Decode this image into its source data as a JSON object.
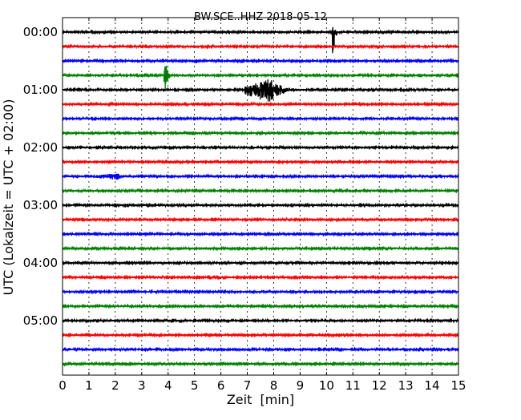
{
  "chart_data": {
    "type": "line",
    "title": "BW.SCE..HHZ 2018-05-12",
    "xlabel": "Zeit  [min]",
    "ylabel": "UTC (Lokalzeit = UTC + 02:00)",
    "xlim": [
      0,
      15
    ],
    "x_ticks": [
      "0",
      "1",
      "2",
      "3",
      "4",
      "5",
      "6",
      "7",
      "8",
      "9",
      "10",
      "11",
      "12",
      "13",
      "14",
      "15"
    ],
    "y_ticks": [
      {
        "label": "00:00",
        "trace": 0
      },
      {
        "label": "01:00",
        "trace": 4
      },
      {
        "label": "02:00",
        "trace": 8
      },
      {
        "label": "03:00",
        "trace": 12
      },
      {
        "label": "04:00",
        "trace": 16
      },
      {
        "label": "05:00",
        "trace": 20
      }
    ],
    "grid": "vertical dotted at each minute",
    "trace_count": 24,
    "minutes_per_trace": 15,
    "trace_colors": [
      "#000000",
      "#ff0000",
      "#0000ff",
      "#008000"
    ],
    "events": [
      {
        "trace": 0,
        "start_min": 10.2,
        "peak_min": 10.25,
        "end_min": 10.5,
        "amp_up": 12,
        "amp_down": 36
      },
      {
        "trace": 3,
        "start_min": 3.85,
        "peak_min": 3.9,
        "end_min": 4.2,
        "amp_up": 22,
        "amp_down": 26
      },
      {
        "trace": 4,
        "start_min": 6.9,
        "peak_min": 7.85,
        "end_min": 9.6,
        "amp_up": 14,
        "amp_down": 16
      },
      {
        "trace": 6,
        "start_min": 12.0,
        "peak_min": 12.1,
        "end_min": 12.3,
        "amp_up": 2,
        "amp_down": 2
      },
      {
        "trace": 7,
        "start_min": 13.6,
        "peak_min": 13.65,
        "end_min": 13.75,
        "amp_up": 4,
        "amp_down": 4
      },
      {
        "trace": 10,
        "start_min": 1.2,
        "peak_min": 2.1,
        "end_min": 3.0,
        "amp_up": 4,
        "amp_down": 5
      },
      {
        "trace": 10,
        "start_min": 13.7,
        "peak_min": 13.9,
        "end_min": 14.2,
        "amp_up": 2,
        "amp_down": 2
      },
      {
        "trace": 11,
        "start_min": 13.6,
        "peak_min": 13.7,
        "end_min": 13.8,
        "amp_up": 2,
        "amp_down": 2
      },
      {
        "trace": 14,
        "start_min": 4.95,
        "peak_min": 5.0,
        "end_min": 5.05,
        "amp_up": 2,
        "amp_down": 2
      },
      {
        "trace": 17,
        "start_min": 6.5,
        "peak_min": 6.6,
        "end_min": 6.7,
        "amp_up": 2,
        "amp_down": 2
      }
    ]
  }
}
